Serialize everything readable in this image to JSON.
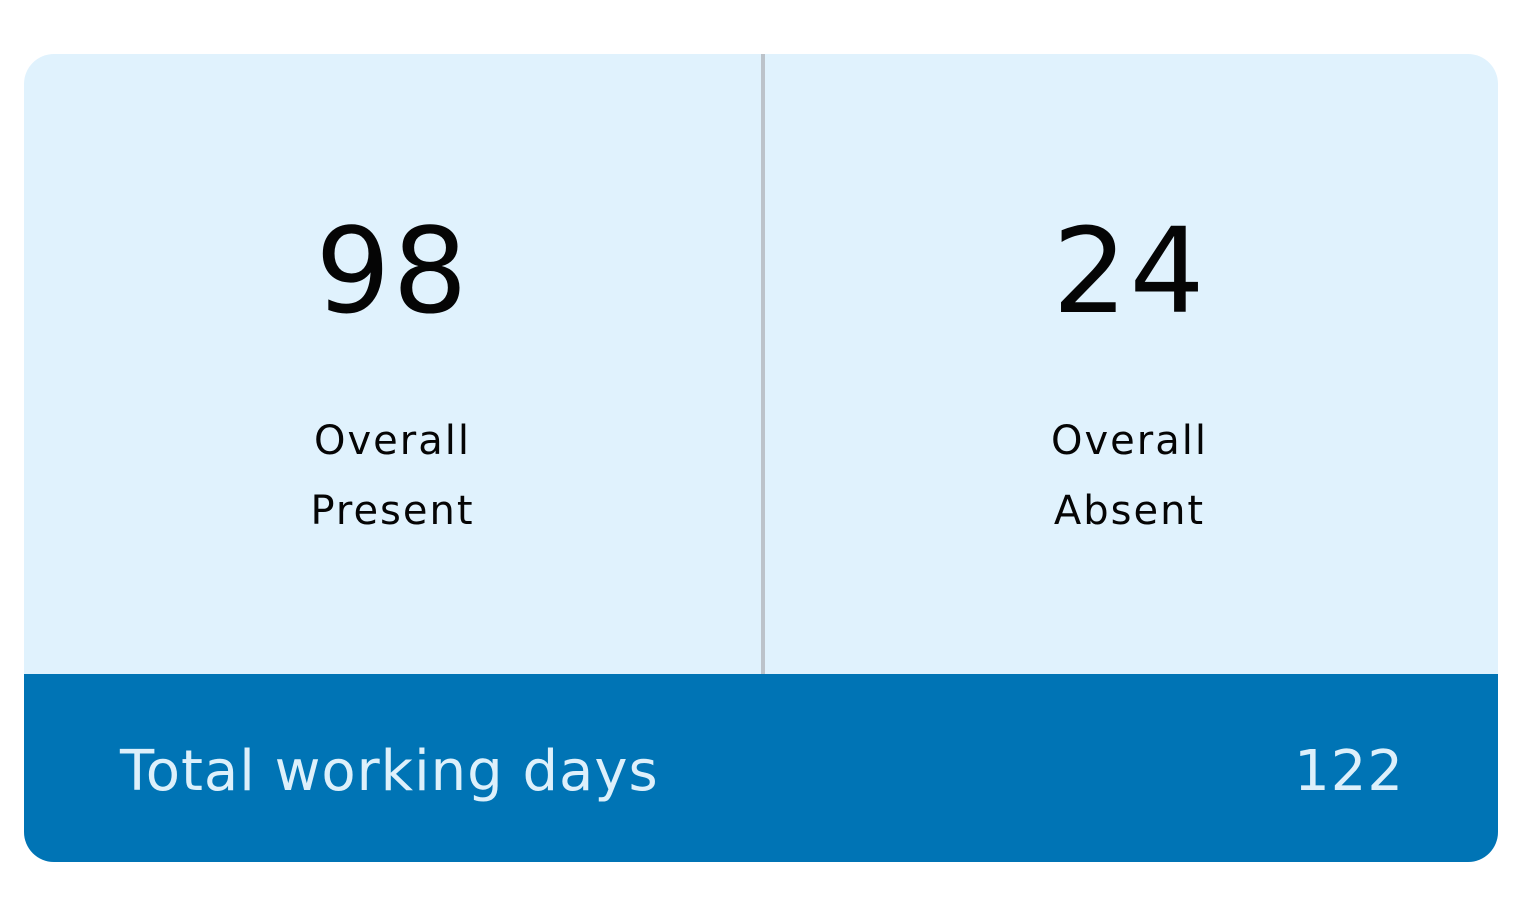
{
  "present": {
    "value": "98",
    "label_line1": "Overall",
    "label_line2": "Present"
  },
  "absent": {
    "value": "24",
    "label_line1": "Overall",
    "label_line2": "Absent"
  },
  "footer": {
    "label": "Total working days",
    "value": "122"
  },
  "colors": {
    "panel_background": "#e0f2fd",
    "footer_background": "#0074b5",
    "footer_text": "#ddf0fb",
    "divider": "#bcc3ca",
    "text": "#050505"
  }
}
